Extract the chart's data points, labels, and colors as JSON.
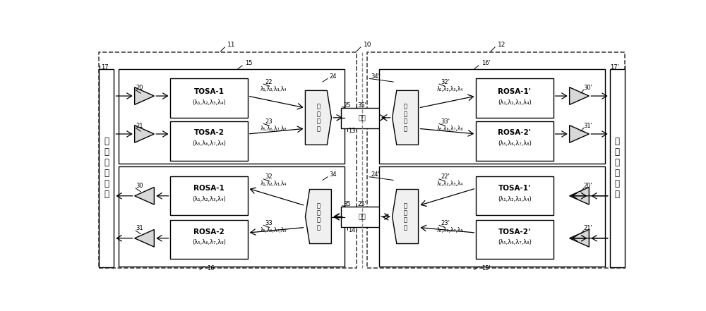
{
  "fig_width": 10.0,
  "fig_height": 4.41,
  "bg_color": "#ffffff",
  "lc": "#000000",
  "gray_fill": "#d8d8d8",
  "light_fill": "#f0f0f0",
  "lambda_1234": "λ₁,λ₂,λ₃,λ₄",
  "lambda_5678": "λ₅,λ₆,λ₇,λ₈",
  "lambda_1234_paren": "(λ₁,λ₂,λ₃,λ₄)",
  "lambda_5678_paren": "(λ₅,λ₆,λ₇,λ₈)"
}
